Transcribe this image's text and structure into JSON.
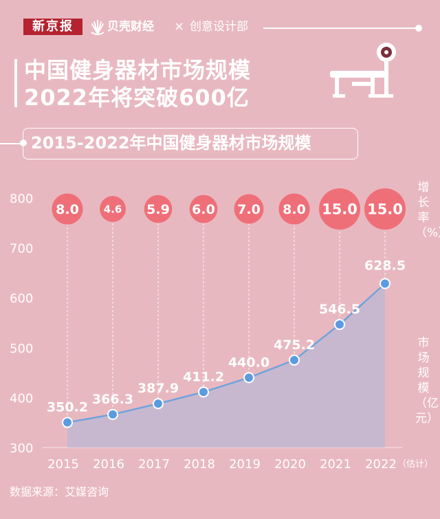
{
  "header": {
    "brand1": "新京报",
    "brand2": "贝壳财经",
    "separator": "×",
    "brand3": "创意设计部"
  },
  "title": {
    "line1": "中国健身器材市场规模",
    "line2": "2022年将突破600亿"
  },
  "subtitle": "2015-2022年中国健身器材市场规模",
  "growth_axis_label": "增长率（%）",
  "market_axis_label": "市场规模（亿元）",
  "estimate_note": "（估计）",
  "source": "数据来源：艾媒咨询",
  "colors": {
    "background": "#e8b8c0",
    "bubble": "#ef6f78",
    "area": "#c4b8d0",
    "line": "#6fa3dc",
    "point": "#5b9be0"
  },
  "chart_data": {
    "type": "line",
    "categories": [
      "2015",
      "2016",
      "2017",
      "2018",
      "2019",
      "2020",
      "2021",
      "2022"
    ],
    "series": [
      {
        "name": "市场规模",
        "unit": "亿元",
        "values": [
          350.2,
          366.3,
          387.9,
          411.2,
          440.0,
          475.2,
          546.5,
          628.5
        ]
      },
      {
        "name": "增长率",
        "unit": "%",
        "values": [
          8.0,
          4.6,
          5.9,
          6.0,
          7.0,
          8.0,
          15.0,
          15.0
        ]
      }
    ],
    "value_labels": [
      "350.2",
      "366.3",
      "387.9",
      "411.2",
      "440.0",
      "475.2",
      "546.5",
      "628.5"
    ],
    "growth_labels": [
      "8.0",
      "4.6",
      "5.9",
      "6.0",
      "7.0",
      "8.0",
      "15.0",
      "15.0"
    ],
    "yticks": [
      "300",
      "400",
      "500",
      "600",
      "700",
      "800"
    ],
    "ylim": [
      300,
      800
    ],
    "grid": false
  }
}
